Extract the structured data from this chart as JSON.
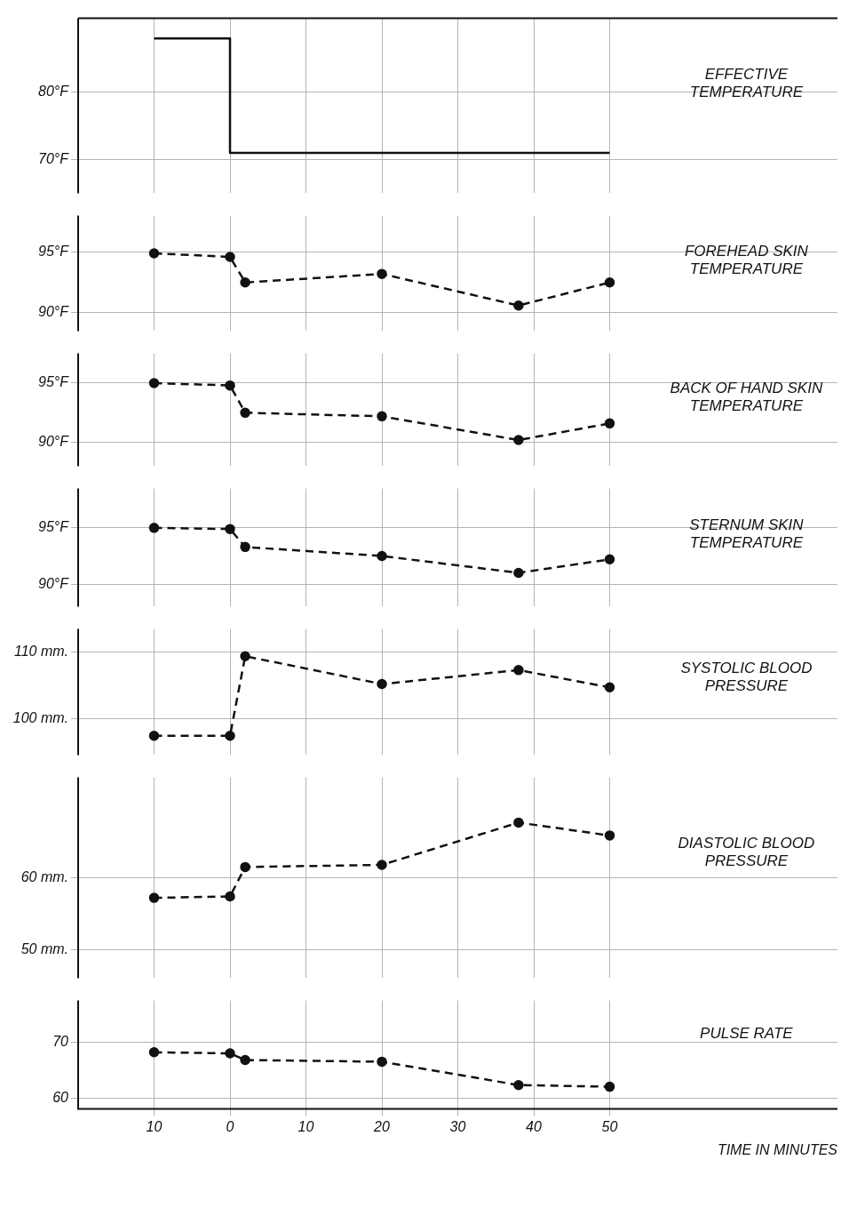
{
  "chart_data": [
    {
      "type": "step",
      "title": "EFFECTIVE TEMPERATURE",
      "x": [
        -10,
        0,
        50
      ],
      "series": [
        {
          "color": "#111111",
          "values": [
            88,
            71,
            71
          ]
        }
      ],
      "xlim": [
        -20,
        80
      ],
      "xticks": [
        -10,
        0,
        10,
        20,
        30,
        40,
        50
      ],
      "ylim": [
        65,
        91
      ],
      "yticks": [
        {
          "value": 70,
          "label": "70°F"
        },
        {
          "value": 80,
          "label": "80°F"
        }
      ],
      "grid": true,
      "tick_labels": "y",
      "line_style": "solid",
      "marker": "none"
    },
    {
      "type": "line",
      "title": "FOREHEAD SKIN TEMPERATURE",
      "x": [
        -10,
        0,
        2,
        20,
        38,
        50
      ],
      "series": [
        {
          "color": "#111111",
          "values": [
            94.9,
            94.6,
            92.5,
            93.2,
            90.6,
            92.5
          ]
        }
      ],
      "xlim": [
        -20,
        80
      ],
      "xticks": [
        -10,
        0,
        10,
        20,
        30,
        40,
        50
      ],
      "ylim": [
        88.5,
        98
      ],
      "yticks": [
        {
          "value": 90,
          "label": "90°F"
        },
        {
          "value": 95,
          "label": "95°F"
        }
      ],
      "grid": true,
      "tick_labels": "y",
      "line_style": "dashed",
      "marker": "circle"
    },
    {
      "type": "line",
      "title": "BACK OF HAND SKIN TEMPERATURE",
      "x": [
        -10,
        0,
        2,
        20,
        38,
        50
      ],
      "series": [
        {
          "color": "#111111",
          "values": [
            95.0,
            94.8,
            92.5,
            92.2,
            90.2,
            91.6
          ]
        }
      ],
      "xlim": [
        -20,
        80
      ],
      "xticks": [
        -10,
        0,
        10,
        20,
        30,
        40,
        50
      ],
      "ylim": [
        88,
        97.5
      ],
      "yticks": [
        {
          "value": 90,
          "label": "90°F"
        },
        {
          "value": 95,
          "label": "95°F"
        }
      ],
      "grid": true,
      "tick_labels": "y",
      "line_style": "dashed",
      "marker": "circle"
    },
    {
      "type": "line",
      "title": "STERNUM SKIN TEMPERATURE",
      "x": [
        -10,
        0,
        2,
        20,
        38,
        50
      ],
      "series": [
        {
          "color": "#111111",
          "values": [
            95.0,
            94.9,
            93.3,
            92.5,
            91.0,
            92.2
          ]
        }
      ],
      "xlim": [
        -20,
        80
      ],
      "xticks": [
        -10,
        0,
        10,
        20,
        30,
        40,
        50
      ],
      "ylim": [
        88,
        98.5
      ],
      "yticks": [
        {
          "value": 90,
          "label": "90°F"
        },
        {
          "value": 95,
          "label": "95°F"
        }
      ],
      "grid": true,
      "tick_labels": "y",
      "line_style": "dashed",
      "marker": "circle"
    },
    {
      "type": "line",
      "title": "SYSTOLIC BLOOD PRESSURE",
      "x": [
        -10,
        0,
        2,
        20,
        38,
        50
      ],
      "series": [
        {
          "color": "#111111",
          "values": [
            97.4,
            97.4,
            109.4,
            105.2,
            107.3,
            104.7
          ]
        }
      ],
      "xlim": [
        -20,
        80
      ],
      "xticks": [
        -10,
        0,
        10,
        20,
        30,
        40,
        50
      ],
      "ylim": [
        94.5,
        113.5
      ],
      "yticks": [
        {
          "value": 100,
          "label": "100 mm."
        },
        {
          "value": 110,
          "label": "110 mm."
        }
      ],
      "grid": true,
      "tick_labels": "y",
      "line_style": "dashed",
      "marker": "circle"
    },
    {
      "type": "line",
      "title": "DIASTOLIC BLOOD PRESSURE",
      "x": [
        -10,
        0,
        2,
        20,
        38,
        50
      ],
      "series": [
        {
          "color": "#111111",
          "values": [
            57.2,
            57.4,
            61.5,
            61.8,
            67.7,
            65.9
          ]
        }
      ],
      "xlim": [
        -20,
        80
      ],
      "xticks": [
        -10,
        0,
        10,
        20,
        30,
        40,
        50
      ],
      "ylim": [
        46,
        74
      ],
      "yticks": [
        {
          "value": 50,
          "label": "50 mm."
        },
        {
          "value": 60,
          "label": "60 mm."
        }
      ],
      "grid": true,
      "tick_labels": "y",
      "line_style": "dashed",
      "marker": "circle"
    },
    {
      "type": "line",
      "title": "PULSE RATE",
      "xlabel": "TIME IN MINUTES",
      "x": [
        -10,
        0,
        2,
        20,
        38,
        50
      ],
      "series": [
        {
          "color": "#111111",
          "values": [
            68.2,
            68.0,
            66.8,
            66.5,
            62.3,
            62.0
          ]
        }
      ],
      "xlim": [
        -20,
        80
      ],
      "xticks": [
        {
          "value": -10,
          "label": "10"
        },
        0,
        10,
        20,
        30,
        40,
        50
      ],
      "ylim": [
        58,
        77.5
      ],
      "yticks": [
        60,
        70
      ],
      "grid": true,
      "line_style": "dashed",
      "marker": "circle"
    }
  ]
}
